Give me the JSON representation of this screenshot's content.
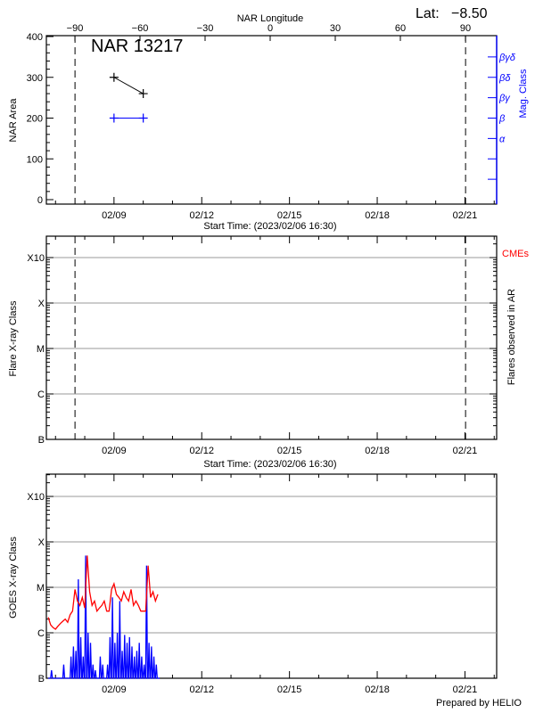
{
  "header": {
    "lat_label": "Lat:",
    "lat_value": "−8.50",
    "region": "NAR 13217",
    "footer": "Prepared by HELIO"
  },
  "colors": {
    "area": "#000000",
    "mag_class": "#0000ff",
    "goes_long": "#ff0000",
    "goes_short": "#0000ff",
    "cme": "#ff0000",
    "grid": "#999999"
  },
  "chart_data": [
    {
      "type": "line",
      "title": "NAR 13217",
      "start_time": "2023-02-06 16:30",
      "xlabel": "Start Time: (2023/02/06 16:30)",
      "x_ticks": [
        "02/09",
        "02/12",
        "02/15",
        "02/18",
        "02/21"
      ],
      "x_top_label": "NAR Longitude",
      "x_top_ticks": [
        "−90",
        "−60",
        "−30",
        "0",
        "30",
        "60",
        "90"
      ],
      "x_top_tick_values": [
        -90,
        -60,
        -30,
        0,
        30,
        60,
        90
      ],
      "ylabel": "NAR Area",
      "ylim": [
        0,
        400
      ],
      "y_ticks": [
        "0",
        "100",
        "200",
        "300",
        "400"
      ],
      "y2label": "Mag. Class",
      "y2_ticks": [
        "α",
        "β",
        "βγ",
        "βδ",
        "βγδ"
      ],
      "limb_crossings": [
        "2023-02-07 16:00",
        "2023-02-21 00:30"
      ],
      "series": [
        {
          "kind": "area",
          "x": [
            "2023-02-09 00:00",
            "2023-02-10 00:00"
          ],
          "y": [
            300,
            260
          ]
        },
        {
          "kind": "mag_class",
          "x": [
            "2023-02-09 00:00",
            "2023-02-10 00:00"
          ],
          "y": [
            "β",
            "β"
          ]
        }
      ]
    },
    {
      "type": "line",
      "xlabel": "Start Time: (2023/02/06 16:30)",
      "x_ticks": [
        "02/09",
        "02/12",
        "02/15",
        "02/18",
        "02/21"
      ],
      "ylabel": "Flare X-ray Class",
      "y2label": "Flares observed in AR",
      "y_scale": "log",
      "y_ticks": [
        "B",
        "C",
        "M",
        "X",
        "X10"
      ],
      "annotation": "CMEs",
      "limb_crossings": [
        "2023-02-07 16:00",
        "2023-02-21 00:30"
      ],
      "grid": true,
      "series": []
    },
    {
      "type": "line",
      "x_ticks": [
        "02/09",
        "02/12",
        "02/15",
        "02/18",
        "02/21"
      ],
      "ylabel": "GOES X-ray Class",
      "y_scale": "log",
      "y_ticks": [
        "B",
        "C",
        "M",
        "X",
        "X10"
      ],
      "grid": true,
      "x": [
        "2023-02-06 18:00",
        "2023-02-06 20:00",
        "2023-02-06 22:00",
        "2023-02-07 00:00",
        "2023-02-07 02:00",
        "2023-02-07 04:00",
        "2023-02-07 06:00",
        "2023-02-07 08:00",
        "2023-02-07 10:00",
        "2023-02-07 12:00",
        "2023-02-07 14:00",
        "2023-02-07 16:00",
        "2023-02-07 18:00",
        "2023-02-07 20:00",
        "2023-02-07 22:00",
        "2023-02-08 00:00",
        "2023-02-08 02:00",
        "2023-02-08 04:00",
        "2023-02-08 06:00",
        "2023-02-08 08:00",
        "2023-02-08 10:00",
        "2023-02-08 12:00",
        "2023-02-08 14:00",
        "2023-02-08 16:00",
        "2023-02-08 18:00",
        "2023-02-08 20:00",
        "2023-02-08 22:00",
        "2023-02-09 00:00",
        "2023-02-09 02:00",
        "2023-02-09 04:00",
        "2023-02-09 06:00",
        "2023-02-09 08:00",
        "2023-02-09 10:00",
        "2023-02-09 12:00",
        "2023-02-09 14:00",
        "2023-02-09 16:00",
        "2023-02-09 18:00",
        "2023-02-09 20:00",
        "2023-02-09 22:00",
        "2023-02-10 00:00",
        "2023-02-10 02:00",
        "2023-02-10 04:00",
        "2023-02-10 06:00",
        "2023-02-10 08:00",
        "2023-02-10 10:00",
        "2023-02-10 12:00"
      ],
      "series": [
        {
          "kind": "long",
          "values": [
            2.2e-06,
            1.5e-06,
            1.3e-06,
            1.2e-06,
            1.4e-06,
            1.6e-06,
            1.8e-06,
            2e-06,
            1.7e-06,
            2.5e-06,
            3e-06,
            9e-06,
            5e-06,
            4e-06,
            6e-06,
            3.5e-06,
            5e-05,
            8e-06,
            4e-06,
            5e-06,
            3e-06,
            3.5e-06,
            4e-06,
            5e-06,
            3e-06,
            3e-06,
            9e-06,
            1.2e-05,
            7e-06,
            6e-06,
            5e-06,
            8e-06,
            6e-06,
            5e-06,
            9e-06,
            4e-06,
            5e-06,
            4e-06,
            3e-06,
            3e-06,
            3e-06,
            3e-05,
            6e-06,
            8e-06,
            5e-06,
            7e-06
          ]
        },
        {
          "kind": "short",
          "values": [
            1e-07,
            1.5e-07,
            1e-07,
            1e-07,
            1e-07,
            1e-07,
            2e-07,
            1e-07,
            1e-07,
            3e-07,
            5e-07,
            4e-07,
            1.5e-05,
            8e-07,
            3e-07,
            5e-05,
            1e-06,
            6e-07,
            2e-07,
            1.5e-07,
            1e-07,
            3e-07,
            2e-07,
            1e-07,
            2e-07,
            8e-07,
            6e-06,
            6e-07,
            1e-06,
            5e-06,
            4e-07,
            9e-07,
            6e-07,
            8e-07,
            5e-07,
            3e-07,
            4e-07,
            6e-07,
            3e-07,
            2e-07,
            3e-05,
            6e-07,
            5e-07,
            3e-07,
            2e-07,
            1e-07
          ]
        }
      ]
    }
  ]
}
